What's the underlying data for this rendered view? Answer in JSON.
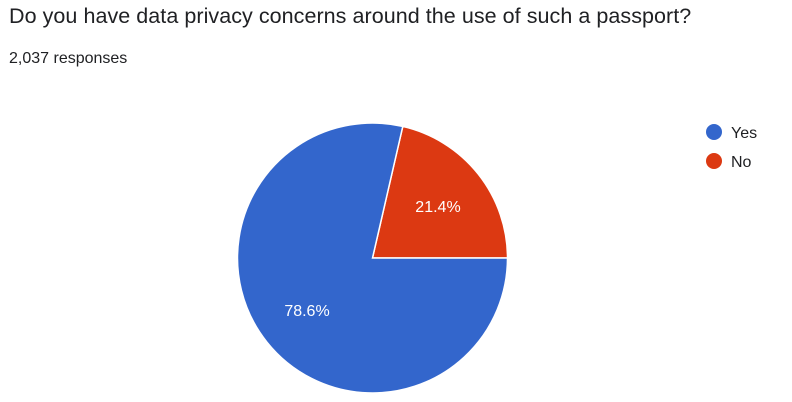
{
  "question": {
    "title": "Do you have data privacy concerns around the use of such a passport?",
    "response_count": "2,037 responses"
  },
  "chart_data": {
    "type": "pie",
    "title": "Do you have data privacy concerns around the use of such a passport?",
    "categories": [
      "Yes",
      "No"
    ],
    "values": [
      78.6,
      21.4
    ],
    "labels": [
      "78.6%",
      "21.4%"
    ],
    "colors": [
      "#3366cc",
      "#dc3912"
    ],
    "legend_position": "right",
    "start_angle_deg": 90,
    "direction": "counter-clockwise"
  }
}
